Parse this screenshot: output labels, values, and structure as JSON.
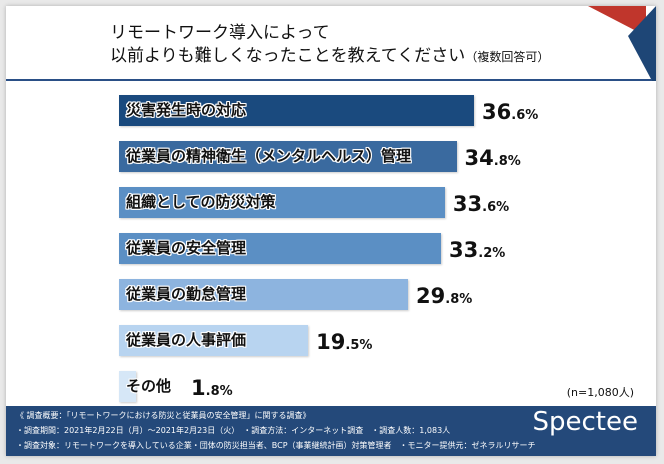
{
  "title": {
    "line1": "リモートワーク導入によって",
    "line2": "以前よりも難しくなったことを教えてください",
    "note": "（複数回答可）"
  },
  "chart_data": {
    "type": "bar",
    "orientation": "horizontal",
    "categories": [
      "災害発生時の対応",
      "従業員の精神衛生（メンタルヘルス）管理",
      "組織としての防災対策",
      "従業員の安全管理",
      "従業員の勤怠管理",
      "従業員の人事評価",
      "その他"
    ],
    "values": [
      36.6,
      34.8,
      33.6,
      33.2,
      29.8,
      19.5,
      1.8
    ],
    "value_labels": [
      {
        "i": "36",
        "d": ".6%"
      },
      {
        "i": "34",
        "d": ".8%"
      },
      {
        "i": "33",
        "d": ".6%"
      },
      {
        "i": "33",
        "d": ".2%"
      },
      {
        "i": "29",
        "d": ".8%"
      },
      {
        "i": "19",
        "d": ".5%"
      },
      {
        "i": "1",
        "d": ".8%"
      }
    ],
    "colors": [
      "#1a4a7e",
      "#3a6a9f",
      "#5b8fc4",
      "#5b8fc4",
      "#8db4df",
      "#b8d4f0",
      "#d6e7f7"
    ],
    "unit": "%",
    "sample_note": "(n=1,080人)"
  },
  "footer": {
    "heading": "《 調査概要：「リモートワークにおける防災と従業員の安全管理」に関する調査》",
    "line1": "・調査期間：2021年2月22日（月）～2021年2月23日（火）　・調査方法：インターネット調査　・調査人数：1,083人",
    "line2": "・調査対象：リモートワークを導入している企業・団体の防災担当者、BCP（事業継続計画）対策管理者　・モニター提供元：ゼネラルリサーチ",
    "logo": "Spectee"
  }
}
